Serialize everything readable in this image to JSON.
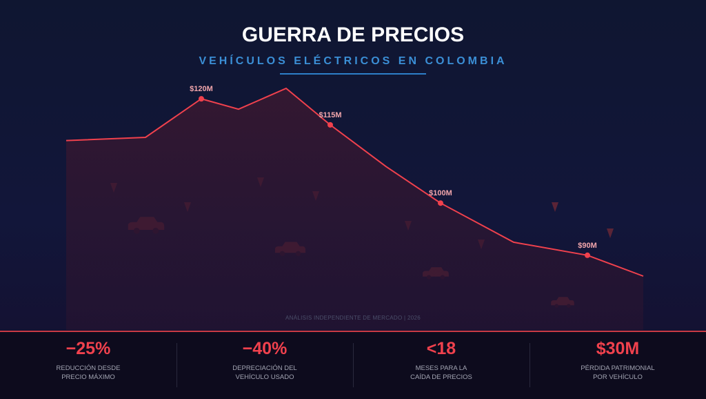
{
  "header": {
    "title": "GUERRA DE PRECIOS",
    "subtitle": "VEHÍCULOS ELÉCTRICOS EN COLOMBIA"
  },
  "footer_note": "ANÁLISIS INDEPENDIENTE DE MERCADO | 2026",
  "colors": {
    "line": "#f0414d",
    "fill": "#3a1830",
    "accent_blue": "#3b8fd6",
    "marker_dark": "#5a2436"
  },
  "icons": [
    "down-arrow-icon",
    "car-icon"
  ],
  "chart_data": {
    "type": "area",
    "title": "GUERRA DE PRECIOS",
    "subtitle": "VEHÍCULOS ELÉCTRICOS EN COLOMBIA",
    "xlabel": "",
    "ylabel": "",
    "grid": false,
    "ylim": [
      70,
      127
    ],
    "x": [
      0,
      1,
      2,
      3,
      4,
      5,
      6,
      7,
      8,
      9,
      10
    ],
    "values": [
      112,
      112.6,
      120,
      118,
      122,
      115,
      107,
      100,
      92.5,
      90,
      86
    ],
    "labels": [
      {
        "index": 2,
        "text": "$120M"
      },
      {
        "index": 5,
        "text": "$115M"
      },
      {
        "index": 7,
        "text": "$100M"
      },
      {
        "index": 9,
        "text": "$90M"
      }
    ]
  },
  "stats": [
    {
      "value": "−25%",
      "label": "REDUCCIÓN DESDE\nPRECIO MÁXIMO"
    },
    {
      "value": "−40%",
      "label": "DEPRECIACIÓN DEL\nVEHÍCULO USADO"
    },
    {
      "value": "<18",
      "label": "MESES PARA LA\nCAÍDA DE PRECIOS"
    },
    {
      "value": "$30M",
      "label": "PÉRDIDA PATRIMONIAL\nPOR VEHÍCULO"
    }
  ]
}
